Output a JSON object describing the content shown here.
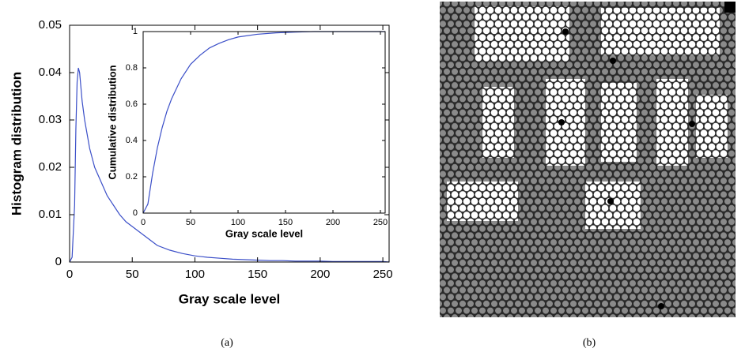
{
  "chart_data": [
    {
      "type": "line",
      "xlabel": "Gray scale level",
      "ylabel": "Histogram distribution",
      "x": [
        0,
        2,
        4,
        5,
        6,
        7,
        8,
        9,
        10,
        12,
        14,
        16,
        18,
        20,
        25,
        30,
        35,
        40,
        45,
        50,
        55,
        60,
        65,
        70,
        80,
        90,
        100,
        110,
        120,
        130,
        140,
        150,
        160,
        170,
        180,
        190,
        200,
        210,
        220,
        230,
        240,
        250,
        255
      ],
      "values": [
        0,
        0.001,
        0.012,
        0.028,
        0.038,
        0.041,
        0.04,
        0.037,
        0.034,
        0.03,
        0.027,
        0.024,
        0.022,
        0.02,
        0.017,
        0.014,
        0.012,
        0.01,
        0.0085,
        0.0075,
        0.0065,
        0.0055,
        0.0045,
        0.0035,
        0.0025,
        0.0018,
        0.0013,
        0.001,
        0.0008,
        0.0006,
        0.0005,
        0.0004,
        0.0003,
        0.0003,
        0.0002,
        0.0002,
        0.0002,
        0.0001,
        0.0001,
        0.0001,
        0.0001,
        0.0001,
        0
      ],
      "color": "#3b4fc8",
      "xlim": [
        0,
        255
      ],
      "xticks": [
        0,
        50,
        100,
        150,
        200,
        250
      ],
      "ylim": [
        0,
        0.05
      ],
      "yticks": [
        0,
        0.01,
        0.02,
        0.03,
        0.04,
        0.05
      ]
    },
    {
      "type": "line",
      "xlabel": "Gray scale level",
      "ylabel": "Cumulative distribution",
      "x": [
        0,
        5,
        10,
        15,
        20,
        25,
        30,
        40,
        50,
        60,
        70,
        80,
        90,
        100,
        120,
        140,
        160,
        180,
        200,
        255
      ],
      "values": [
        0,
        0.05,
        0.22,
        0.36,
        0.47,
        0.56,
        0.63,
        0.74,
        0.82,
        0.87,
        0.91,
        0.935,
        0.955,
        0.97,
        0.985,
        0.993,
        0.997,
        1,
        1,
        1
      ],
      "color": "#3b4fc8",
      "xlim": [
        0,
        255
      ],
      "xticks": [
        0,
        50,
        100,
        150,
        200,
        250
      ],
      "ylim": [
        0,
        1
      ],
      "yticks": [
        0,
        0.2,
        0.4,
        0.6,
        0.8,
        1
      ]
    }
  ],
  "captions": [
    "(a)",
    "(b)"
  ]
}
